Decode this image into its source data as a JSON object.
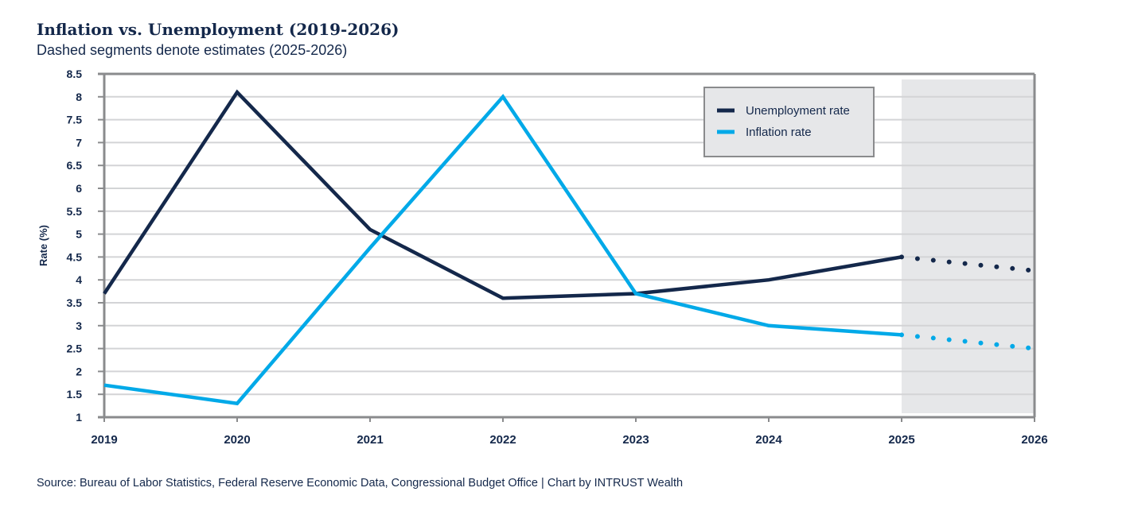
{
  "chart_data": {
    "type": "line",
    "title": "Inflation vs. Unemployment (2019-2026)",
    "subtitle": "Dashed segments denote estimates (2025-2026)",
    "ylabel": "Rate (%)",
    "xlabel": "",
    "x": [
      2019,
      2020,
      2021,
      2022,
      2023,
      2024,
      2025,
      2026
    ],
    "ylim": [
      1,
      8.5
    ],
    "yticks": [
      "1",
      "1.5",
      "2",
      "2.5",
      "3",
      "3.5",
      "4",
      "4.5",
      "5",
      "5.5",
      "6",
      "6.5",
      "7",
      "7.5",
      "8",
      "8.5"
    ],
    "grid": true,
    "legend": "top-right",
    "estimate_range": [
      2025,
      2026
    ],
    "series": [
      {
        "name": "Unemployment rate",
        "color": "#14284b",
        "values": [
          3.7,
          8.1,
          5.1,
          3.6,
          3.7,
          4.0,
          4.5,
          4.2
        ]
      },
      {
        "name": "Inflation rate",
        "color": "#00a9e8",
        "values": [
          1.7,
          1.3,
          4.7,
          8.0,
          3.7,
          3.0,
          2.8,
          2.5
        ]
      }
    ]
  },
  "source": "Source: Bureau of Labor Statistics, Federal Reserve Economic Data, Congressional Budget Office  |  Chart by INTRUST Wealth"
}
